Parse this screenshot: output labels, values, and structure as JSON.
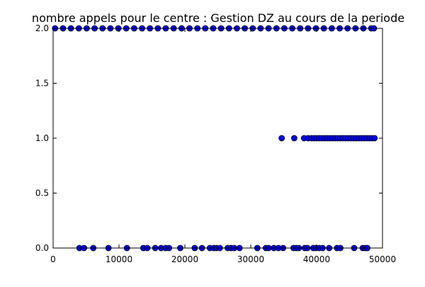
{
  "chart_data": {
    "type": "scatter",
    "title": "nombre appels pour le centre : Gestion DZ au cours de la periode",
    "xlabel": "",
    "ylabel": "",
    "xlim": [
      0,
      50000
    ],
    "ylim": [
      0.0,
      2.0
    ],
    "x_ticks": [
      0,
      10000,
      20000,
      30000,
      40000,
      50000
    ],
    "x_tick_labels": [
      "0",
      "10000",
      "20000",
      "30000",
      "40000",
      "50000"
    ],
    "y_ticks": [
      0.0,
      0.5,
      1.0,
      1.5,
      2.0
    ],
    "y_tick_labels": [
      "0.0",
      "0.5",
      "1.0",
      "1.5",
      "2.0"
    ],
    "grid": false,
    "legend": "none",
    "marker_color": "#0000ff",
    "marker_edge_color": "#000000",
    "series": [
      {
        "points": [
          [
            4000,
            0
          ],
          [
            4700,
            0
          ],
          [
            6100,
            0
          ],
          [
            8400,
            0
          ],
          [
            11200,
            0
          ],
          [
            13700,
            0
          ],
          [
            14300,
            0
          ],
          [
            15500,
            0
          ],
          [
            16400,
            0
          ],
          [
            17100,
            0
          ],
          [
            17600,
            0
          ],
          [
            19300,
            0
          ],
          [
            21500,
            0
          ],
          [
            22600,
            0
          ],
          [
            23800,
            0
          ],
          [
            24400,
            0
          ],
          [
            24800,
            0
          ],
          [
            25300,
            0
          ],
          [
            26500,
            0
          ],
          [
            27000,
            0
          ],
          [
            27500,
            0
          ],
          [
            28300,
            0
          ],
          [
            31000,
            0
          ],
          [
            32300,
            0
          ],
          [
            32700,
            0
          ],
          [
            33500,
            0
          ],
          [
            34200,
            0
          ],
          [
            34900,
            0
          ],
          [
            36500,
            0
          ],
          [
            36900,
            0
          ],
          [
            37300,
            0
          ],
          [
            38200,
            0
          ],
          [
            38600,
            0
          ],
          [
            39500,
            0
          ],
          [
            39900,
            0
          ],
          [
            40400,
            0
          ],
          [
            40900,
            0
          ],
          [
            41900,
            0
          ],
          [
            43100,
            0
          ],
          [
            43600,
            0
          ],
          [
            45700,
            0
          ],
          [
            47000,
            0
          ],
          [
            47400,
            0
          ],
          [
            47700,
            0
          ],
          [
            34700,
            1
          ],
          [
            36600,
            1
          ],
          [
            38100,
            1
          ],
          [
            38700,
            1
          ],
          [
            39200,
            1
          ],
          [
            39600,
            1
          ],
          [
            40000,
            1
          ],
          [
            40400,
            1
          ],
          [
            40800,
            1
          ],
          [
            41200,
            1
          ],
          [
            41600,
            1
          ],
          [
            42000,
            1
          ],
          [
            42400,
            1
          ],
          [
            42800,
            1
          ],
          [
            43200,
            1
          ],
          [
            43600,
            1
          ],
          [
            44000,
            1
          ],
          [
            44400,
            1
          ],
          [
            44800,
            1
          ],
          [
            45200,
            1
          ],
          [
            45600,
            1
          ],
          [
            46000,
            1
          ],
          [
            46400,
            1
          ],
          [
            46800,
            1
          ],
          [
            47200,
            1
          ],
          [
            47600,
            1
          ],
          [
            48000,
            1
          ],
          [
            48400,
            1
          ],
          [
            48800,
            1
          ],
          [
            300,
            2
          ],
          [
            1500,
            2
          ],
          [
            2700,
            2
          ],
          [
            3900,
            2
          ],
          [
            5100,
            2
          ],
          [
            6300,
            2
          ],
          [
            7500,
            2
          ],
          [
            8700,
            2
          ],
          [
            9900,
            2
          ],
          [
            11100,
            2
          ],
          [
            12300,
            2
          ],
          [
            13500,
            2
          ],
          [
            14700,
            2
          ],
          [
            15900,
            2
          ],
          [
            17100,
            2
          ],
          [
            18300,
            2
          ],
          [
            19500,
            2
          ],
          [
            20700,
            2
          ],
          [
            21900,
            2
          ],
          [
            23100,
            2
          ],
          [
            24300,
            2
          ],
          [
            25500,
            2
          ],
          [
            26700,
            2
          ],
          [
            27900,
            2
          ],
          [
            29100,
            2
          ],
          [
            30300,
            2
          ],
          [
            31500,
            2
          ],
          [
            32700,
            2
          ],
          [
            33900,
            2
          ],
          [
            35100,
            2
          ],
          [
            36300,
            2
          ],
          [
            37500,
            2
          ],
          [
            38700,
            2
          ],
          [
            39900,
            2
          ],
          [
            41100,
            2
          ],
          [
            42300,
            2
          ],
          [
            43500,
            2
          ],
          [
            44700,
            2
          ],
          [
            45900,
            2
          ],
          [
            47100,
            2
          ],
          [
            48300,
            2
          ],
          [
            48700,
            2
          ]
        ]
      }
    ]
  }
}
